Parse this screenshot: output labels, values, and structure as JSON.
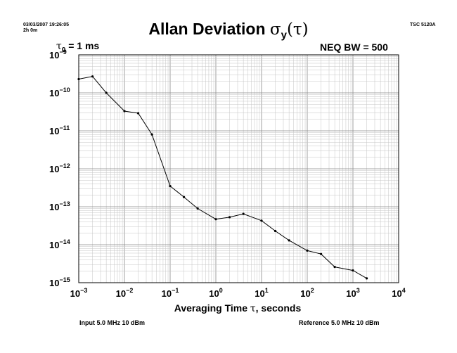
{
  "header": {
    "timestamp": "03/03/2007 19:26:05",
    "duration": "2h 0m",
    "model": "TSC 5120A",
    "tau0_symbol": "τ",
    "tau0_sub": "0",
    "tau0_rest": " = 1 ms",
    "neq_bw": "NEQ BW = 500"
  },
  "footer": {
    "input": "Input 5.0 MHz 10 dBm",
    "reference": "Reference 5.0 MHz 10 dBm"
  },
  "chart_data": {
    "type": "line",
    "scale": "log-log",
    "title_main": "Allan Deviation ",
    "title_symbol": "σ",
    "title_sub": "y",
    "title_arg": "(τ)",
    "xlabel_pre": "Averaging Time ",
    "xlabel_symbol": "τ",
    "xlabel_post": ", seconds",
    "xlim": [
      0.001,
      10000
    ],
    "ylim": [
      1e-15,
      1e-09
    ],
    "x_ticks": [
      {
        "base": "10",
        "exp": "−3"
      },
      {
        "base": "10",
        "exp": "−2"
      },
      {
        "base": "10",
        "exp": "−1"
      },
      {
        "base": "10",
        "exp": "0"
      },
      {
        "base": "10",
        "exp": "1"
      },
      {
        "base": "10",
        "exp": "2"
      },
      {
        "base": "10",
        "exp": "3"
      },
      {
        "base": "10",
        "exp": "4"
      }
    ],
    "y_ticks": [
      {
        "base": "10",
        "exp": "−9"
      },
      {
        "base": "10",
        "exp": "−10"
      },
      {
        "base": "10",
        "exp": "−11"
      },
      {
        "base": "10",
        "exp": "−12"
      },
      {
        "base": "10",
        "exp": "−13"
      },
      {
        "base": "10",
        "exp": "−14"
      },
      {
        "base": "10",
        "exp": "−15"
      }
    ],
    "grid": true,
    "line_color": "#000000",
    "x": [
      0.001,
      0.002,
      0.004,
      0.01,
      0.02,
      0.04,
      0.1,
      0.2,
      0.4,
      1,
      2,
      4,
      10,
      20,
      40,
      100,
      200,
      400,
      1000,
      2000
    ],
    "y": [
      2.3e-10,
      2.7e-10,
      1e-10,
      3.3e-11,
      2.9e-11,
      8e-12,
      3.5e-13,
      1.8e-13,
      9e-14,
      4.7e-14,
      5.3e-14,
      6.5e-14,
      4.3e-14,
      2.3e-14,
      1.3e-14,
      7e-15,
      5.7e-15,
      2.6e-15,
      2.1e-15,
      1.3e-15
    ]
  }
}
